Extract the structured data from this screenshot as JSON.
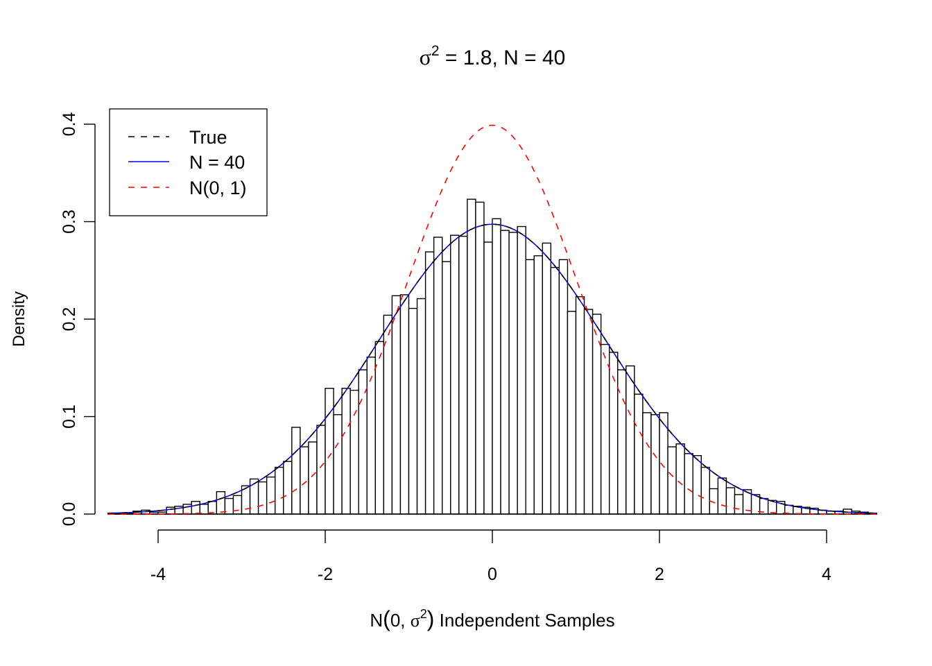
{
  "chart_data": {
    "type": "bar",
    "subtype": "histogram",
    "title": {
      "sigma_symbol": "σ",
      "superscript": "2",
      "rest": " = 1.8, N = 40"
    },
    "xlabel": {
      "prefix": "N",
      "open": "(",
      "inner": "0, ",
      "sigma": "σ",
      "sup": "2",
      "close": ")",
      "suffix": " Independent Samples"
    },
    "ylabel": "Density",
    "xlim": [
      -4.6,
      4.6
    ],
    "ylim": [
      0,
      0.4
    ],
    "xticks": [
      -4,
      -2,
      0,
      2,
      4
    ],
    "xtick_labels": [
      "-4",
      "-2",
      "0",
      "2",
      "4"
    ],
    "yticks": [
      0,
      0.1,
      0.2,
      0.3,
      0.4
    ],
    "ytick_labels": [
      "0.0",
      "0.1",
      "0.2",
      "0.3",
      "0.4"
    ],
    "grid": false,
    "bin_start": -4.6,
    "bin_width": 0.1,
    "bar_values": [
      0.001,
      0.001,
      0.001,
      0.003,
      0.004,
      0.002,
      0.002,
      0.007,
      0.008,
      0.01,
      0.013,
      0.01,
      0.013,
      0.023,
      0.016,
      0.019,
      0.029,
      0.036,
      0.033,
      0.038,
      0.048,
      0.054,
      0.089,
      0.069,
      0.074,
      0.091,
      0.129,
      0.102,
      0.129,
      0.127,
      0.148,
      0.161,
      0.177,
      0.204,
      0.224,
      0.225,
      0.211,
      0.221,
      0.269,
      0.284,
      0.259,
      0.286,
      0.285,
      0.323,
      0.32,
      0.279,
      0.303,
      0.291,
      0.289,
      0.295,
      0.261,
      0.265,
      0.278,
      0.253,
      0.261,
      0.208,
      0.223,
      0.21,
      0.205,
      0.174,
      0.166,
      0.148,
      0.152,
      0.123,
      0.104,
      0.102,
      0.104,
      0.069,
      0.072,
      0.062,
      0.06,
      0.048,
      0.026,
      0.037,
      0.027,
      0.02,
      0.025,
      0.02,
      0.016,
      0.014,
      0.013,
      0.009,
      0.008,
      0.007,
      0.006,
      0.004,
      0.003,
      0.003,
      0.005,
      0.003,
      0.002,
      0.001
    ],
    "bar_fill": "#ffffff",
    "bar_stroke": "#000000",
    "series": [
      {
        "name": "True",
        "kind": "normal_density",
        "mean": 0,
        "variance": 1.8,
        "color": "#000000",
        "dash": "dashed"
      },
      {
        "name": "N = 40",
        "kind": "normal_density",
        "mean": 0,
        "variance": 1.8,
        "color": "#0000ff",
        "dash": "solid"
      },
      {
        "name": "N(0, 1)",
        "kind": "normal_density",
        "mean": 0,
        "variance": 1.0,
        "color": "#ff0000",
        "dash": "dashed"
      }
    ],
    "legend": {
      "placement": "top-left",
      "entries": [
        "True",
        "N = 40",
        "N(0, 1)"
      ]
    }
  }
}
